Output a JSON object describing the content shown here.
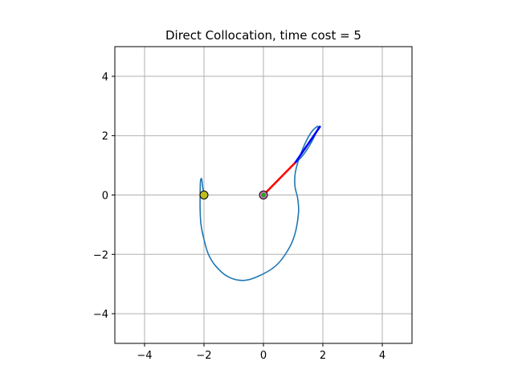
{
  "chart_data": {
    "type": "line",
    "title": "Direct Collocation, time cost = 5",
    "xlabel": "",
    "ylabel": "",
    "xlim": [
      -5,
      5
    ],
    "ylim": [
      -5,
      5
    ],
    "xticks": [
      -4,
      -2,
      0,
      2,
      4
    ],
    "yticks": [
      -4,
      -2,
      0,
      2,
      4
    ],
    "xtick_labels": [
      "−4",
      "−2",
      "0",
      "2",
      "4"
    ],
    "ytick_labels": [
      "−4",
      "−2",
      "0",
      "2",
      "4"
    ],
    "grid": true,
    "legend": "none",
    "series": [
      {
        "color": "#1f77b4",
        "points": [
          [
            -2.0,
            0.0
          ],
          [
            -2.05,
            0.3
          ],
          [
            -2.08,
            0.55
          ],
          [
            -2.12,
            0.45
          ],
          [
            -2.13,
            0.0
          ],
          [
            -2.13,
            -0.5
          ],
          [
            -2.1,
            -1.0
          ],
          [
            -2.0,
            -1.5
          ],
          [
            -1.85,
            -2.0
          ],
          [
            -1.6,
            -2.4
          ],
          [
            -1.2,
            -2.75
          ],
          [
            -0.7,
            -2.88
          ],
          [
            -0.2,
            -2.75
          ],
          [
            0.4,
            -2.4
          ],
          [
            0.8,
            -1.9
          ],
          [
            1.05,
            -1.35
          ],
          [
            1.18,
            -0.6
          ],
          [
            1.15,
            -0.1
          ],
          [
            1.06,
            0.3
          ],
          [
            1.08,
            0.8
          ],
          [
            1.3,
            1.5
          ],
          [
            1.6,
            2.1
          ],
          [
            1.85,
            2.3
          ],
          [
            1.6,
            1.75
          ],
          [
            1.3,
            1.3
          ],
          [
            1.08,
            1.1
          ]
        ]
      }
    ],
    "pendulum": {
      "pivot": [
        0,
        0
      ],
      "elbow": [
        1.08,
        1.1
      ],
      "tip": [
        1.9,
        2.3
      ],
      "link1_color": "#ff0000",
      "link2_color": "#0000ff"
    },
    "markers": [
      {
        "x": -2.0,
        "y": 0.0,
        "fill": "#bcbd22",
        "edge": "#000000"
      },
      {
        "x": 0.0,
        "y": 0.0,
        "fill": "#e377c2",
        "edge": "#000000"
      },
      {
        "x": 0.0,
        "y": 0.0,
        "fill": "#2ca02c",
        "edge": "#2ca02c"
      }
    ],
    "colors": {
      "axes_edge": "#000000",
      "grid": "#b0b0b0"
    }
  }
}
